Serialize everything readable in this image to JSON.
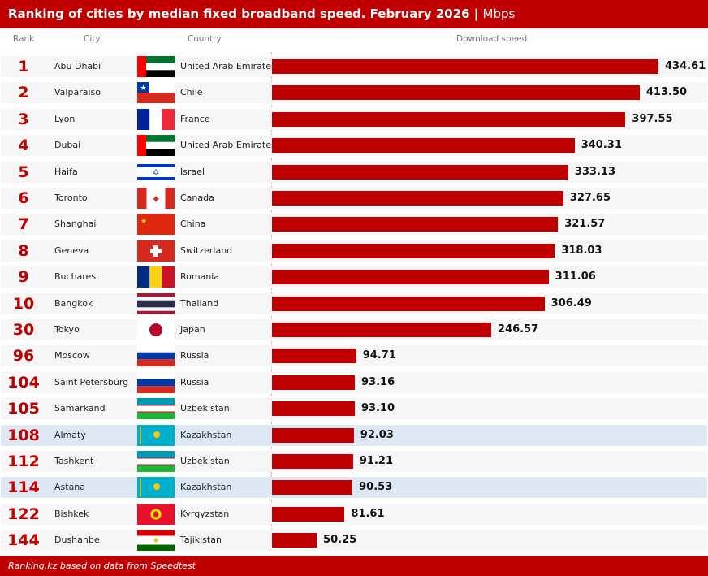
{
  "header": {
    "title": "Ranking of cities by median fixed broadband speed. February 2026",
    "separator": "|",
    "unit": "Mbps"
  },
  "columns": {
    "rank": "Rank",
    "city": "City",
    "country": "Country",
    "speed": "Download speed"
  },
  "footer": "Ranking.kz based on data from Speedtest",
  "colors": {
    "accent": "#c00000",
    "highlight_row": "#dde8f4",
    "row": "#f6f6f6"
  },
  "chart_data": {
    "type": "bar",
    "orientation": "horizontal",
    "title": "Ranking of cities by median fixed broadband speed. February 2026",
    "unit": "Mbps",
    "xlabel": "Download speed",
    "xlim": [
      0,
      434.61
    ],
    "rows": [
      {
        "rank": "1",
        "city": "Abu Dhabi",
        "country": "United Arab Emirates",
        "flag": "uae",
        "value": 434.61,
        "label": "434.61"
      },
      {
        "rank": "2",
        "city": "Valparaiso",
        "country": "Chile",
        "flag": "chile",
        "value": 413.5,
        "label": "413.50"
      },
      {
        "rank": "3",
        "city": "Lyon",
        "country": "France",
        "flag": "france",
        "value": 397.55,
        "label": "397.55"
      },
      {
        "rank": "4",
        "city": "Dubai",
        "country": "United Arab Emirates",
        "flag": "uae",
        "value": 340.31,
        "label": "340.31"
      },
      {
        "rank": "5",
        "city": "Haifa",
        "country": "Israel",
        "flag": "israel",
        "value": 333.13,
        "label": "333.13"
      },
      {
        "rank": "6",
        "city": "Toronto",
        "country": "Canada",
        "flag": "canada",
        "value": 327.65,
        "label": "327.65"
      },
      {
        "rank": "7",
        "city": "Shanghai",
        "country": "China",
        "flag": "china",
        "value": 321.57,
        "label": "321.57"
      },
      {
        "rank": "8",
        "city": "Geneva",
        "country": "Switzerland",
        "flag": "switzerland",
        "value": 318.03,
        "label": "318.03"
      },
      {
        "rank": "9",
        "city": "Bucharest",
        "country": "Romania",
        "flag": "romania",
        "value": 311.06,
        "label": "311.06"
      },
      {
        "rank": "10",
        "city": "Bangkok",
        "country": "Thailand",
        "flag": "thailand",
        "value": 306.49,
        "label": "306.49"
      },
      {
        "rank": "30",
        "city": "Tokyo",
        "country": "Japan",
        "flag": "japan",
        "value": 246.57,
        "label": "246.57"
      },
      {
        "rank": "96",
        "city": "Moscow",
        "country": "Russia",
        "flag": "russia",
        "value": 94.71,
        "label": "94.71"
      },
      {
        "rank": "104",
        "city": "Saint Petersburg",
        "country": "Russia",
        "flag": "russia",
        "value": 93.16,
        "label": "93.16"
      },
      {
        "rank": "105",
        "city": "Samarkand",
        "country": "Uzbekistan",
        "flag": "uzbekistan",
        "value": 93.1,
        "label": "93.10"
      },
      {
        "rank": "108",
        "city": "Almaty",
        "country": "Kazakhstan",
        "flag": "kazakhstan",
        "value": 92.03,
        "label": "92.03",
        "highlight": true
      },
      {
        "rank": "112",
        "city": "Tashkent",
        "country": "Uzbekistan",
        "flag": "uzbekistan",
        "value": 91.21,
        "label": "91.21"
      },
      {
        "rank": "114",
        "city": "Astana",
        "country": "Kazakhstan",
        "flag": "kazakhstan",
        "value": 90.53,
        "label": "90.53",
        "highlight": true
      },
      {
        "rank": "122",
        "city": "Bishkek",
        "country": "Kyrgyzstan",
        "flag": "kyrgyzstan",
        "value": 81.61,
        "label": "81.61"
      },
      {
        "rank": "144",
        "city": "Dushanbe",
        "country": "Tajikistan",
        "flag": "tajikistan",
        "value": 50.25,
        "label": "50.25"
      }
    ]
  }
}
